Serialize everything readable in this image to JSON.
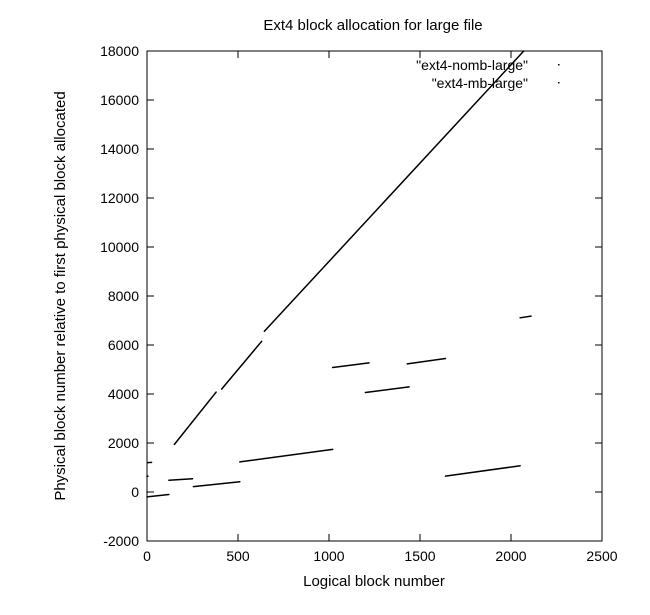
{
  "chart_data": {
    "type": "scatter",
    "title": "Ext4 block allocation for large file",
    "xlabel": "Logical block number",
    "ylabel": "Physical block number relative to first physical block allocated",
    "xlim": [
      0,
      2500
    ],
    "ylim": [
      -2000,
      18000
    ],
    "xticks": [
      "0",
      "500",
      "1000",
      "1500",
      "2000",
      "2500"
    ],
    "yticks": [
      "-2000",
      "0",
      "2000",
      "4000",
      "6000",
      "8000",
      "10000",
      "12000",
      "14000",
      "16000",
      "18000"
    ],
    "grid": false,
    "legend_position": "top-right",
    "series": [
      {
        "name": "\"ext4-nomb-large\"",
        "segments": [
          [
            [
              0,
              0
            ],
            [
              1,
              0
            ]
          ],
          [
            [
              5,
              1200
            ],
            [
              25,
              1210
            ]
          ],
          [
            [
              150,
              1940
            ],
            [
              380,
              4080
            ]
          ],
          [
            [
              410,
              4200
            ],
            [
              630,
              6150
            ]
          ],
          [
            [
              645,
              6560
            ],
            [
              2070,
              18000
            ]
          ]
        ]
      },
      {
        "name": "\"ext4-mb-large\"",
        "segments": [
          [
            [
              0,
              650
            ],
            [
              5,
              650
            ]
          ],
          [
            [
              0,
              -200
            ],
            [
              120,
              -100
            ]
          ],
          [
            [
              120,
              480
            ],
            [
              250,
              540
            ]
          ],
          [
            [
              255,
              220
            ],
            [
              510,
              420
            ]
          ],
          [
            [
              510,
              1230
            ],
            [
              1020,
              1740
            ]
          ],
          [
            [
              1020,
              5080
            ],
            [
              1220,
              5270
            ]
          ],
          [
            [
              1200,
              4060
            ],
            [
              1440,
              4290
            ]
          ],
          [
            [
              1430,
              5230
            ],
            [
              1640,
              5450
            ]
          ],
          [
            [
              1640,
              650
            ],
            [
              2050,
              1070
            ]
          ],
          [
            [
              2050,
              7110
            ],
            [
              2110,
              7180
            ]
          ]
        ]
      }
    ]
  }
}
